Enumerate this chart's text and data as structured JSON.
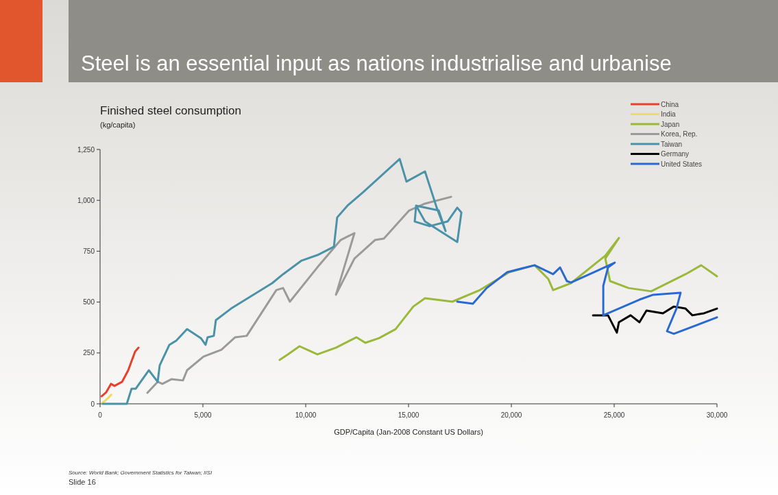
{
  "chart_data": {
    "type": "line",
    "title": "Steel is an essential input as nations industrialise and urbanise",
    "subtitle": "Finished steel consumption",
    "ylabel": "(kg/capita)",
    "xlabel": "GDP/Capita (Jan-2008 Constant US Dollars)",
    "xlim": [
      0,
      30000
    ],
    "xticks": [
      0,
      {
        "value": 5000,
        "label": "5,000"
      },
      {
        "value": 10000,
        "label": "10,000"
      },
      {
        "value": 15000,
        "label": "15,000"
      },
      {
        "value": 20000,
        "label": "20,000"
      },
      {
        "value": 25000,
        "label": "25,000"
      },
      {
        "value": 30000,
        "label": "30,000"
      }
    ],
    "ylim": [
      0,
      1250
    ],
    "yticks": [
      0,
      250,
      500,
      750,
      {
        "value": 1000,
        "label": "1,000"
      },
      {
        "value": 1250,
        "label": "1,250"
      }
    ],
    "grid": false,
    "legend": "top right",
    "marker": "none",
    "line_style": "solid",
    "annotations": [
      "Source: World Bank; Government Statistics for Taiwan; IISI",
      "Slide 16"
    ],
    "series": [
      {
        "name": "China",
        "color": "#e8402a",
        "x": [
          70,
          300,
          530,
          700,
          1070,
          1370,
          1700,
          1870
        ],
        "values": [
          37,
          57,
          98,
          88,
          108,
          165,
          256,
          276
        ]
      },
      {
        "name": "India",
        "color": "#f0dc60",
        "x": [
          100,
          250,
          400,
          550
        ],
        "values": [
          5,
          15,
          30,
          45
        ]
      },
      {
        "name": "Japan",
        "color": "#9ab83a",
        "x": [
          8730,
          9130,
          9700,
          10570,
          11470,
          12470,
          12900,
          13570,
          14370,
          15230,
          15800,
          17130,
          18470,
          19900,
          21130,
          21800,
          22030,
          22900,
          24570,
          25230,
          24570,
          24800,
          25700,
          26800,
          28470,
          29230,
          30000
        ],
        "values": [
          216,
          243,
          283,
          243,
          276,
          327,
          300,
          323,
          367,
          478,
          519,
          502,
          559,
          647,
          681,
          613,
          559,
          593,
          728,
          815,
          714,
          603,
          569,
          553,
          637,
          681,
          627
        ]
      },
      {
        "name": "Korea, Rep.",
        "color": "#9a9a9a",
        "x": [
          2300,
          2800,
          3030,
          3470,
          4030,
          4230,
          5030,
          5900,
          6570,
          7130,
          8570,
          8900,
          9230,
          10570,
          11700,
          12370,
          11470,
          12370,
          13370,
          13800,
          15030,
          15800,
          17070
        ],
        "values": [
          54,
          108,
          98,
          121,
          115,
          165,
          232,
          266,
          327,
          334,
          559,
          569,
          502,
          671,
          805,
          839,
          536,
          714,
          805,
          812,
          950,
          984,
          1017
        ]
      },
      {
        "name": "Taiwan",
        "color": "#4a92a8",
        "x": [
          130,
          1300,
          1530,
          1730,
          2370,
          2800,
          2900,
          3370,
          3700,
          4230,
          4900,
          5130,
          5230,
          5530,
          5630,
          6370,
          8370,
          8900,
          9800,
          10570,
          11370,
          11530,
          12030,
          12800,
          14570,
          14900,
          15800,
          16370,
          16800,
          16470,
          15370,
          15300,
          16030,
          16900,
          17370,
          17570,
          17370,
          15800,
          15370
        ],
        "values": [
          0,
          0,
          74,
          74,
          165,
          108,
          189,
          290,
          310,
          367,
          323,
          290,
          327,
          334,
          411,
          468,
          593,
          637,
          704,
          731,
          772,
          916,
          974,
          1041,
          1203,
          1092,
          1142,
          964,
          849,
          950,
          974,
          896,
          873,
          896,
          964,
          940,
          795,
          896,
          974
        ]
      },
      {
        "name": "Germany",
        "color": "#000000",
        "x": [
          23970,
          24700,
          25130,
          25230,
          25800,
          26230,
          26570,
          27370,
          27900,
          28470,
          28800,
          29370,
          30000
        ],
        "values": [
          435,
          435,
          350,
          401,
          435,
          401,
          458,
          445,
          478,
          468,
          435,
          445,
          468
        ]
      },
      {
        "name": "United States",
        "color": "#2a6ad0",
        "x": [
          17370,
          18130,
          18800,
          19800,
          21130,
          22030,
          22370,
          22700,
          22900,
          24030,
          25030,
          24700,
          24470,
          24470,
          26230,
          26900,
          28230,
          28030,
          27570,
          27900,
          30000
        ],
        "values": [
          502,
          492,
          569,
          647,
          681,
          637,
          670,
          603,
          596,
          647,
          694,
          670,
          580,
          435,
          512,
          536,
          546,
          468,
          357,
          344,
          425
        ]
      }
    ]
  }
}
